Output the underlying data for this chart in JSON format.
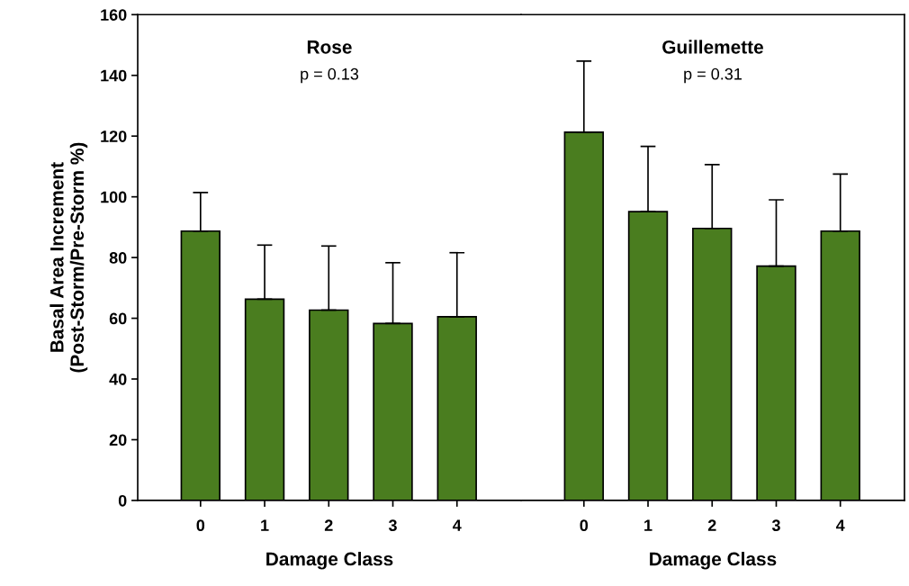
{
  "chart_data": [
    {
      "type": "bar",
      "title": "Rose",
      "subtitle": "p = 0.13",
      "xlabel": "Damage Class",
      "ylabel": "Basal Area Increment\n(Post-Storm/Pre-Storm %)",
      "categories": [
        "0",
        "1",
        "2",
        "3",
        "4"
      ],
      "values": [
        88.7,
        66.3,
        62.7,
        58.3,
        60.5
      ],
      "errors": [
        [
          88.7,
          101.4
        ],
        [
          66.3,
          84.1
        ],
        [
          62.7,
          83.8
        ],
        [
          58.3,
          78.3
        ],
        [
          60.5,
          81.6
        ]
      ],
      "color": "#4a7d1f",
      "ylim": [
        0,
        160
      ],
      "yticks": [
        0,
        20,
        40,
        60,
        80,
        100,
        120,
        140,
        160
      ],
      "grid": false
    },
    {
      "type": "bar",
      "title": "Guillemette",
      "subtitle": "p = 0.31",
      "xlabel": "Damage Class",
      "categories": [
        "0",
        "1",
        "2",
        "3",
        "4"
      ],
      "values": [
        121.3,
        95.1,
        89.6,
        77.2,
        88.7
      ],
      "errors": [
        [
          121.3,
          144.7
        ],
        [
          95.1,
          116.6
        ],
        [
          89.6,
          110.6
        ],
        [
          77.2,
          99.0
        ],
        [
          88.7,
          107.5
        ]
      ],
      "color": "#4a7d1f",
      "ylim": [
        0,
        160
      ],
      "yticks": [
        0,
        20,
        40,
        60,
        80,
        100,
        120,
        140,
        160
      ],
      "tick_labels": "x",
      "grid": false
    }
  ]
}
